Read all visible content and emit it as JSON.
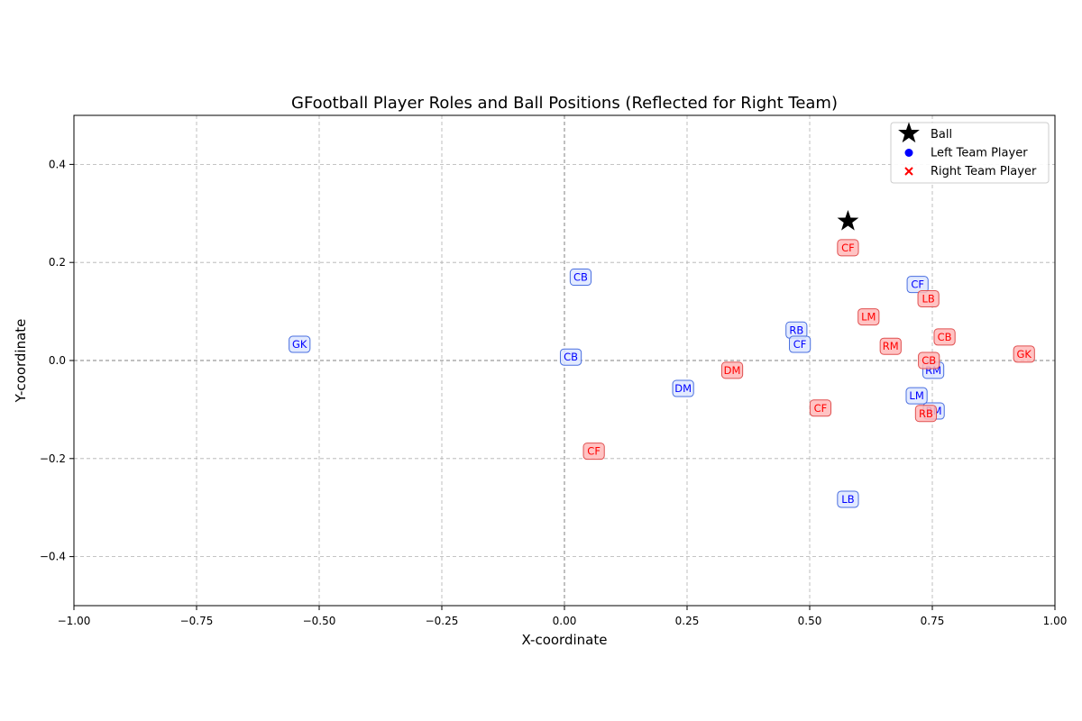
{
  "chart_data": {
    "type": "scatter",
    "title": "GFootball Player Roles and Ball Positions (Reflected for Right Team)",
    "xlabel": "X-coordinate",
    "ylabel": "Y-coordinate",
    "xlim": [
      -1.0,
      1.0
    ],
    "ylim": [
      -0.5,
      0.5
    ],
    "x_ticks": [
      -1.0,
      -0.75,
      -0.5,
      -0.25,
      0.0,
      0.25,
      0.5,
      0.75,
      1.0
    ],
    "x_tick_labels": [
      "−1.00",
      "−0.75",
      "−0.50",
      "−0.25",
      "0.00",
      "0.25",
      "0.50",
      "0.75",
      "1.00"
    ],
    "y_ticks": [
      -0.4,
      -0.2,
      0.0,
      0.2,
      0.4
    ],
    "y_tick_labels": [
      "−0.4",
      "−0.2",
      "0.0",
      "0.2",
      "0.4"
    ],
    "grid": true,
    "zero_lines": true,
    "legend_position": "top-right",
    "ball": {
      "name": "Ball",
      "x": 0.578,
      "y": 0.284,
      "color": "#000000"
    },
    "series": [
      {
        "name": "Left Team Player",
        "marker": "circle",
        "color": "#0000ff",
        "box_fill": "#dde6ff",
        "box_edge": "#4a6fe0",
        "points": [
          {
            "role": "GK",
            "x": -0.54,
            "y": 0.033
          },
          {
            "role": "CB",
            "x": 0.033,
            "y": 0.17
          },
          {
            "role": "CB",
            "x": 0.013,
            "y": 0.007
          },
          {
            "role": "DM",
            "x": 0.242,
            "y": -0.057
          },
          {
            "role": "RB",
            "x": 0.473,
            "y": 0.062
          },
          {
            "role": "CF",
            "x": 0.48,
            "y": 0.033
          },
          {
            "role": "CF",
            "x": 0.72,
            "y": 0.155
          },
          {
            "role": "LM",
            "x": 0.718,
            "y": -0.072
          },
          {
            "role": "RM",
            "x": 0.753,
            "y": -0.103
          },
          {
            "role": "RM",
            "x": 0.752,
            "y": -0.02
          },
          {
            "role": "LB",
            "x": 0.578,
            "y": -0.283
          }
        ]
      },
      {
        "name": "Right Team Player",
        "marker": "x",
        "color": "#ff0000",
        "box_fill": "#ffb8b8",
        "box_edge": "#e05050",
        "points": [
          {
            "role": "GK",
            "x": 0.937,
            "y": 0.013
          },
          {
            "role": "CB",
            "x": 0.775,
            "y": 0.048
          },
          {
            "role": "CB",
            "x": 0.743,
            "y": 0.0
          },
          {
            "role": "LB",
            "x": 0.742,
            "y": 0.126
          },
          {
            "role": "RB",
            "x": 0.737,
            "y": -0.108
          },
          {
            "role": "DM",
            "x": 0.342,
            "y": -0.02
          },
          {
            "role": "LM",
            "x": 0.62,
            "y": 0.089
          },
          {
            "role": "RM",
            "x": 0.665,
            "y": 0.029
          },
          {
            "role": "CF",
            "x": 0.578,
            "y": 0.23
          },
          {
            "role": "CF",
            "x": 0.522,
            "y": -0.097
          },
          {
            "role": "CF",
            "x": 0.06,
            "y": -0.185
          }
        ]
      }
    ]
  }
}
